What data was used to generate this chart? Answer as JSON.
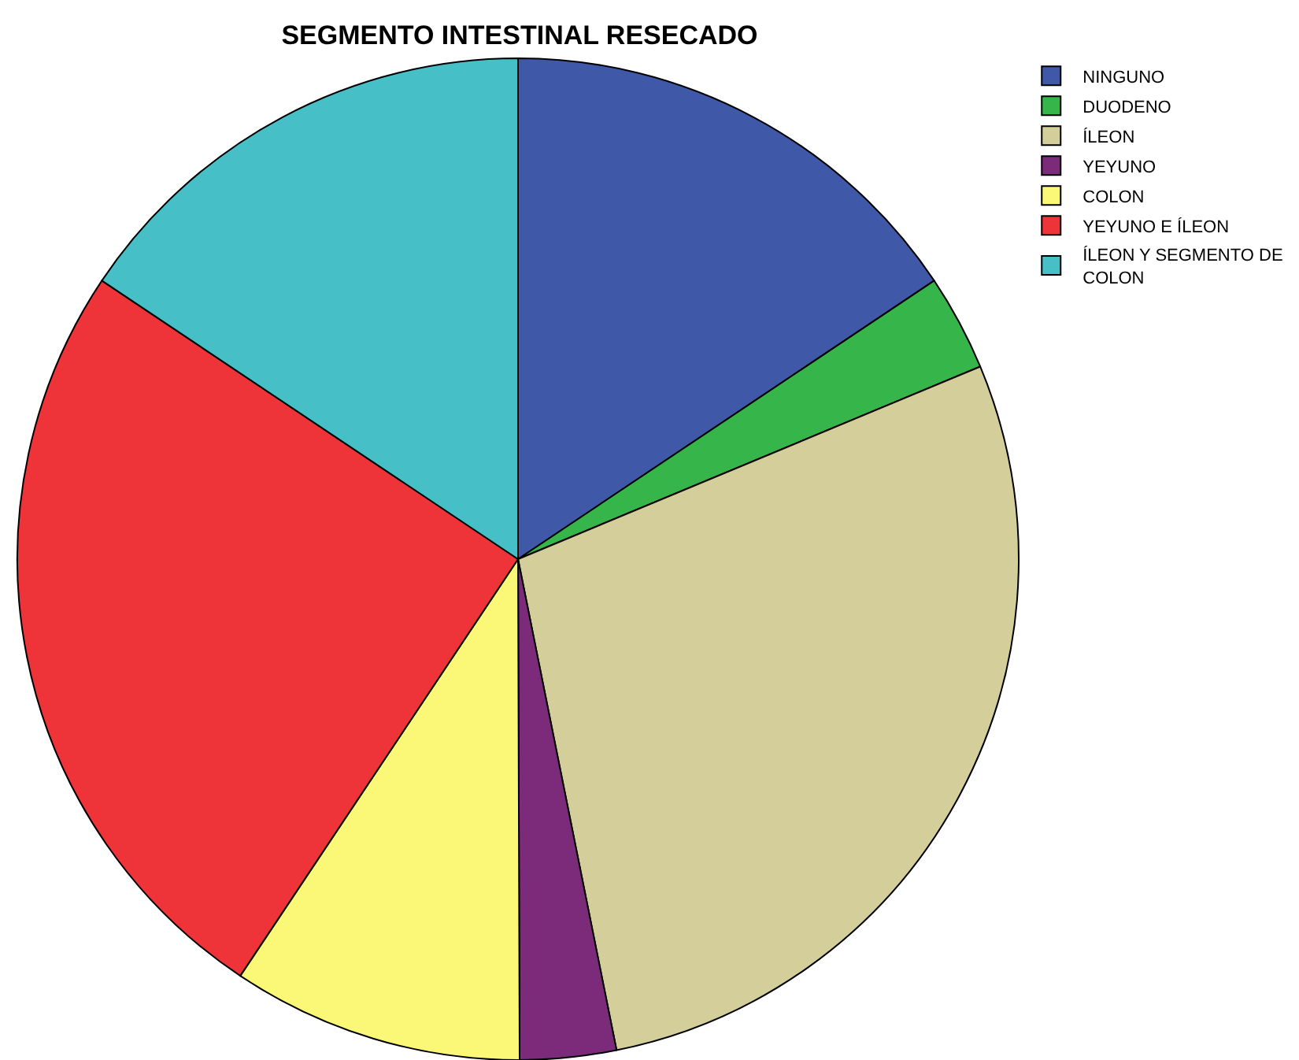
{
  "chart_data": {
    "type": "pie",
    "title": "SEGMENTO INTESTINAL RESECADO",
    "categories": [
      "NINGUNO",
      "DUODENO",
      "ÍLEON",
      "YEYUNO",
      "COLON",
      "YEYUNO E ÍLEON",
      "ÍLEON Y SEGMENTO DE COLON"
    ],
    "values": [
      15.6,
      3.1,
      28.1,
      3.1,
      9.4,
      25,
      15.6
    ],
    "colors": [
      "#3f58a8",
      "#35b54a",
      "#d4cf9a",
      "#7c2a7a",
      "#fbf777",
      "#ef3439",
      "#47bfc6"
    ],
    "legend": "top right"
  }
}
